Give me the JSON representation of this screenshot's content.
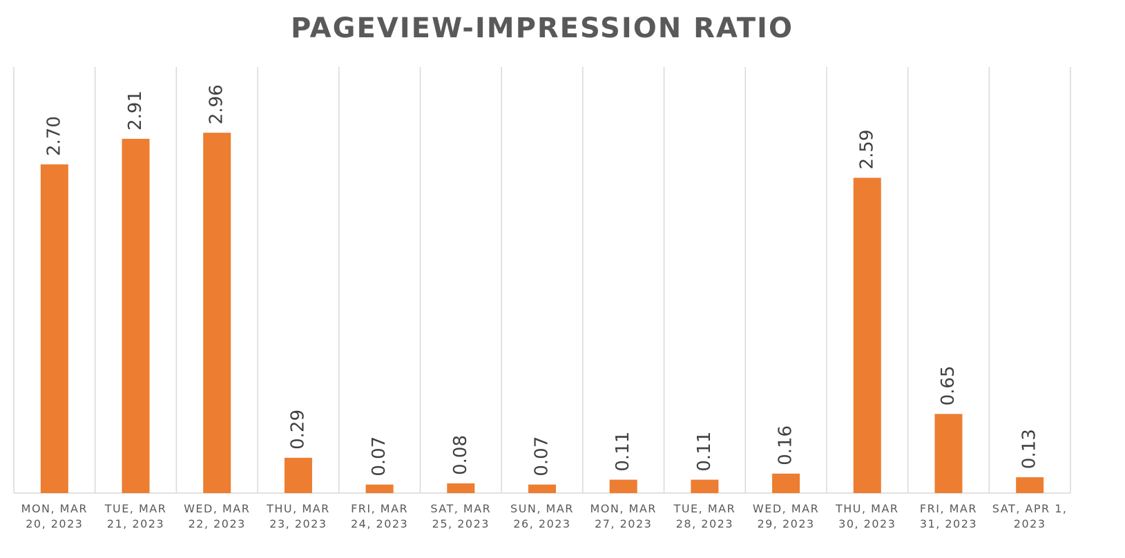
{
  "chart_data": {
    "type": "bar",
    "title": "PAGEVIEW-IMPRESSION RATIO",
    "categories": [
      "MON, MAR 20, 2023",
      "TUE, MAR 21, 2023",
      "WED, MAR 22, 2023",
      "THU, MAR 23, 2023",
      "FRI, MAR 24, 2023",
      "SAT, MAR 25, 2023",
      "SUN, MAR 26, 2023",
      "MON, MAR 27, 2023",
      "TUE, MAR 28, 2023",
      "WED, MAR 29, 2023",
      "THU, MAR 30, 2023",
      "FRI, MAR 31, 2023",
      "SAT, APR 1, 2023"
    ],
    "values": [
      2.7,
      2.91,
      2.96,
      0.29,
      0.07,
      0.08,
      0.07,
      0.11,
      0.11,
      0.16,
      2.59,
      0.65,
      0.13
    ],
    "value_labels": [
      "2.70",
      "2.91",
      "2.96",
      "0.29",
      "0.07",
      "0.08",
      "0.07",
      "0.11",
      "0.11",
      "0.16",
      "2.59",
      "0.65",
      "0.13"
    ],
    "color": "#ED7D31",
    "ylim": [
      0,
      3.5
    ],
    "grid": "x"
  }
}
